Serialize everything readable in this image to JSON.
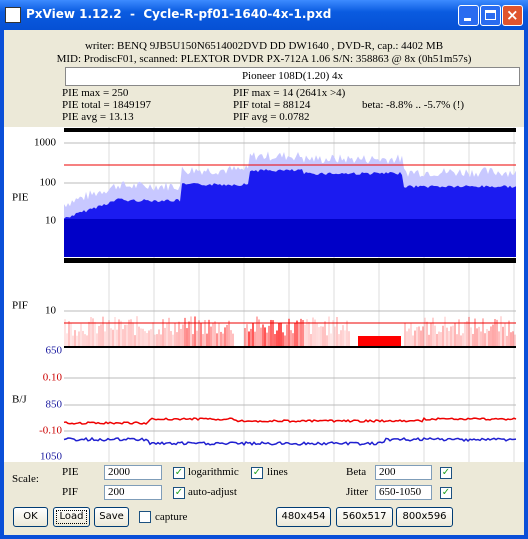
{
  "window": {
    "title": "PxView 1.12.2  -  Cycle-R-pf01-1640-4x-1.pxd"
  },
  "info": {
    "writer": "writer: BENQ 9JB5U150N6514002DVD DD DW1640 , DVD-R, cap.: 4402 MB",
    "media": "MID: ProdiscF01, scanned: PLEXTOR DVDR PX-712A 1.06 S/N: 358863 @ 8x (0h51m57s)",
    "drive": "Pioneer 108D(1.20) 4x"
  },
  "stats": {
    "pie_max": "PIE max = 250",
    "pie_total": "PIE total = 1849197",
    "pie_avg": "PIE avg = 13.13",
    "pif_max": "PIF max = 14 (2641x >4)",
    "pif_total": "PIF total = 88124",
    "pif_avg": "PIF avg = 0.0782",
    "beta": "beta: -8.8% .. -5.7% (!)"
  },
  "graphs": {
    "pie": {
      "label": "PIE",
      "ticks": [
        "1000",
        "100",
        "10"
      ]
    },
    "pif": {
      "label": "PIF",
      "ticks": [
        "10"
      ],
      "jitter_top": "650"
    },
    "bj": {
      "label": "B/J",
      "beta_ticks": [
        "0.10",
        "-0.10"
      ],
      "jitter_ticks": [
        "850",
        "1050"
      ]
    }
  },
  "controls": {
    "scale": "Scale:",
    "pie": {
      "label": "PIE",
      "value": "2000",
      "logarithmic": "logarithmic",
      "lines": "lines"
    },
    "pif": {
      "label": "PIF",
      "value": "200",
      "auto_adjust": "auto-adjust"
    },
    "beta": {
      "label": "Beta",
      "value": "200"
    },
    "jitter": {
      "label": "Jitter",
      "value": "650-1050"
    },
    "buttons": {
      "ok": "OK",
      "load": "Load",
      "save": "Save",
      "capture": "capture",
      "s1": "480x454",
      "s2": "560x517",
      "s3": "800x596"
    }
  }
}
